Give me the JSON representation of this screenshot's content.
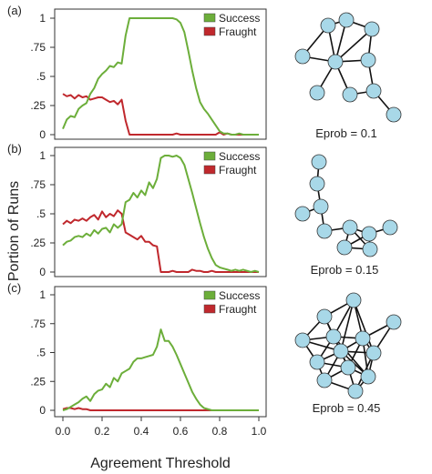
{
  "chart_data": [
    {
      "type": "line",
      "panel_label": "(a)",
      "x": [
        0.0,
        0.02,
        0.04,
        0.06,
        0.08,
        0.1,
        0.12,
        0.14,
        0.16,
        0.18,
        0.2,
        0.22,
        0.24,
        0.26,
        0.28,
        0.3,
        0.32,
        0.34,
        0.36,
        0.38,
        0.4,
        0.42,
        0.44,
        0.46,
        0.48,
        0.5,
        0.52,
        0.54,
        0.56,
        0.58,
        0.6,
        0.62,
        0.64,
        0.66,
        0.68,
        0.7,
        0.72,
        0.74,
        0.76,
        0.78,
        0.8,
        0.82,
        0.84,
        0.86,
        0.88,
        0.9,
        0.92,
        0.94,
        0.96,
        0.98,
        1.0
      ],
      "series": [
        {
          "name": "Success",
          "color": "#6cae3a",
          "values": [
            0.05,
            0.13,
            0.16,
            0.15,
            0.22,
            0.25,
            0.27,
            0.35,
            0.4,
            0.48,
            0.52,
            0.55,
            0.59,
            0.58,
            0.62,
            0.61,
            0.85,
            1.0,
            1.0,
            1.0,
            1.0,
            1.0,
            1.0,
            1.0,
            1.0,
            1.0,
            1.0,
            1.0,
            1.0,
            0.99,
            0.96,
            0.88,
            0.72,
            0.55,
            0.4,
            0.28,
            0.22,
            0.18,
            0.13,
            0.08,
            0.03,
            0.01,
            0.01,
            0.0,
            0.0,
            0.01,
            0.0,
            0.0,
            0.0,
            0.0,
            0.0
          ]
        },
        {
          "name": "Fraught",
          "color": "#c0282d",
          "values": [
            0.35,
            0.33,
            0.34,
            0.31,
            0.34,
            0.32,
            0.33,
            0.3,
            0.31,
            0.32,
            0.32,
            0.3,
            0.28,
            0.29,
            0.26,
            0.3,
            0.12,
            0.0,
            0.0,
            0.0,
            0.0,
            0.0,
            0.0,
            0.0,
            0.0,
            0.0,
            0.0,
            0.0,
            0.0,
            0.01,
            0.0,
            0.0,
            0.0,
            0.0,
            0.0,
            0.0,
            0.0,
            0.0,
            0.0,
            0.0,
            0.02,
            0.0,
            0.01,
            0.0,
            0.0,
            0.0,
            0.0,
            0.0,
            0.0,
            0.0,
            0.0
          ]
        }
      ],
      "ylim": [
        0,
        1
      ],
      "yticks": [
        0,
        0.25,
        0.5,
        0.75,
        1
      ],
      "ytick_labels": [
        "0",
        ".25",
        ".5",
        ".75",
        "1"
      ],
      "legend_position": "top-right",
      "network_caption": "Eprob = 0.1"
    },
    {
      "type": "line",
      "panel_label": "(b)",
      "x": [
        0.0,
        0.02,
        0.04,
        0.06,
        0.08,
        0.1,
        0.12,
        0.14,
        0.16,
        0.18,
        0.2,
        0.22,
        0.24,
        0.26,
        0.28,
        0.3,
        0.32,
        0.34,
        0.36,
        0.38,
        0.4,
        0.42,
        0.44,
        0.46,
        0.48,
        0.5,
        0.52,
        0.54,
        0.56,
        0.58,
        0.6,
        0.62,
        0.64,
        0.66,
        0.68,
        0.7,
        0.72,
        0.74,
        0.76,
        0.78,
        0.8,
        0.82,
        0.84,
        0.86,
        0.88,
        0.9,
        0.92,
        0.94,
        0.96,
        0.98,
        1.0
      ],
      "series": [
        {
          "name": "Success",
          "color": "#6cae3a",
          "values": [
            0.23,
            0.26,
            0.27,
            0.3,
            0.31,
            0.3,
            0.33,
            0.31,
            0.36,
            0.33,
            0.37,
            0.38,
            0.34,
            0.41,
            0.38,
            0.41,
            0.6,
            0.62,
            0.68,
            0.64,
            0.7,
            0.66,
            0.77,
            0.72,
            0.8,
            0.98,
            1.0,
            1.0,
            0.99,
            1.0,
            0.98,
            0.92,
            0.8,
            0.68,
            0.55,
            0.42,
            0.3,
            0.2,
            0.12,
            0.06,
            0.04,
            0.03,
            0.02,
            0.01,
            0.02,
            0.01,
            0.02,
            0.01,
            0.0,
            0.01,
            0.0
          ]
        },
        {
          "name": "Fraught",
          "color": "#c0282d",
          "values": [
            0.41,
            0.44,
            0.42,
            0.45,
            0.44,
            0.46,
            0.44,
            0.47,
            0.49,
            0.45,
            0.52,
            0.47,
            0.5,
            0.48,
            0.53,
            0.5,
            0.34,
            0.32,
            0.3,
            0.28,
            0.31,
            0.26,
            0.26,
            0.23,
            0.22,
            0.0,
            0.0,
            0.0,
            0.01,
            0.0,
            0.0,
            0.0,
            0.0,
            0.02,
            0.01,
            0.01,
            0.0,
            0.0,
            0.01,
            0.0,
            0.0,
            0.0,
            0.0,
            0.0,
            0.0,
            0.0,
            0.0,
            0.0,
            0.0,
            0.0,
            0.0
          ]
        }
      ],
      "ylim": [
        0,
        1
      ],
      "yticks": [
        0,
        0.25,
        0.5,
        0.75,
        1
      ],
      "ytick_labels": [
        "0",
        ".25",
        ".5",
        ".75",
        "1"
      ],
      "legend_position": "top-right",
      "network_caption": "Eprob = 0.15"
    },
    {
      "type": "line",
      "panel_label": "(c)",
      "x": [
        0.0,
        0.02,
        0.04,
        0.06,
        0.08,
        0.1,
        0.12,
        0.14,
        0.16,
        0.18,
        0.2,
        0.22,
        0.24,
        0.26,
        0.28,
        0.3,
        0.32,
        0.34,
        0.36,
        0.38,
        0.4,
        0.42,
        0.44,
        0.46,
        0.48,
        0.5,
        0.52,
        0.54,
        0.56,
        0.58,
        0.6,
        0.62,
        0.64,
        0.66,
        0.68,
        0.7,
        0.72,
        0.74,
        0.76,
        0.78,
        0.8,
        0.82,
        0.84,
        0.86,
        0.88,
        0.9,
        0.92,
        0.94,
        0.96,
        0.98,
        1.0
      ],
      "series": [
        {
          "name": "Success",
          "color": "#6cae3a",
          "values": [
            0.0,
            0.01,
            0.03,
            0.05,
            0.07,
            0.1,
            0.12,
            0.08,
            0.14,
            0.17,
            0.18,
            0.23,
            0.2,
            0.28,
            0.25,
            0.32,
            0.34,
            0.36,
            0.42,
            0.45,
            0.45,
            0.46,
            0.47,
            0.48,
            0.55,
            0.7,
            0.6,
            0.6,
            0.55,
            0.48,
            0.4,
            0.32,
            0.24,
            0.16,
            0.1,
            0.05,
            0.02,
            0.01,
            0.0,
            0.0,
            0.0,
            0.0,
            0.0,
            0.0,
            0.0,
            0.0,
            0.0,
            0.0,
            0.0,
            0.0,
            0.0
          ]
        },
        {
          "name": "Fraught",
          "color": "#c0282d",
          "values": [
            0.01,
            0.02,
            0.02,
            0.01,
            0.02,
            0.01,
            0.01,
            0.0,
            0.0,
            0.0,
            0.0,
            0.0,
            0.0,
            0.0,
            0.0,
            0.0,
            0.0,
            0.0,
            0.0,
            0.0,
            0.0,
            0.0,
            0.0,
            0.0,
            0.0,
            0.0,
            0.0,
            0.0,
            0.0,
            0.0,
            0.0,
            0.0,
            0.0,
            0.0,
            0.0,
            0.0,
            0.0,
            0.0,
            0.0,
            0.0,
            0.0,
            0.0,
            0.0,
            0.0,
            0.0,
            0.0,
            0.0,
            0.0,
            0.0,
            0.0,
            0.0
          ]
        }
      ],
      "ylim": [
        0,
        1
      ],
      "yticks": [
        0,
        0.25,
        0.5,
        0.75,
        1
      ],
      "ytick_labels": [
        "0",
        ".25",
        ".5",
        ".75",
        "1"
      ],
      "xlim": [
        0,
        1
      ],
      "xticks": [
        0.0,
        0.2,
        0.4,
        0.6,
        0.8,
        1.0
      ],
      "xtick_labels": [
        "0.0",
        "0.2",
        "0.4",
        "0.6",
        "0.8",
        "1.0"
      ],
      "legend_position": "top-right",
      "network_caption": "Eprob = 0.45"
    }
  ],
  "axes": {
    "xlabel": "Agreement Threshold",
    "ylabel": "Portion of Runs"
  },
  "style": {
    "node_color": "#a8d8e8",
    "success_color": "#6cae3a",
    "fraught_color": "#c0282d"
  }
}
